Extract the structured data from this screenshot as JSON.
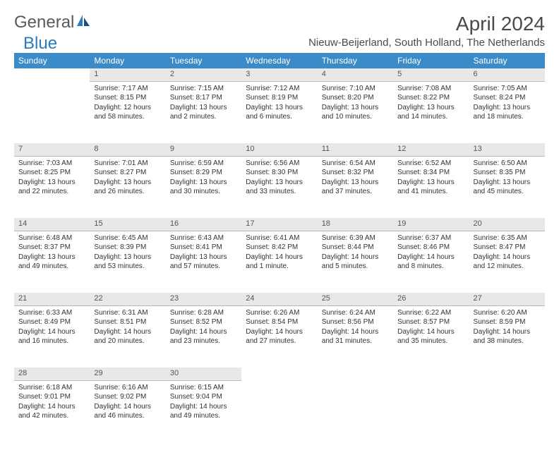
{
  "logo": {
    "text1": "General",
    "text2": "Blue"
  },
  "title": "April 2024",
  "location": "Nieuw-Beijerland, South Holland, The Netherlands",
  "colors": {
    "header_bg": "#3b8bc8",
    "header_fg": "#ffffff",
    "daynum_bg": "#e8e8e8",
    "separator": "#3b6a8f",
    "logo_gray": "#5a5a5a",
    "logo_blue": "#2a7abf"
  },
  "weekdays": [
    "Sunday",
    "Monday",
    "Tuesday",
    "Wednesday",
    "Thursday",
    "Friday",
    "Saturday"
  ],
  "weeks": [
    [
      null,
      {
        "n": "1",
        "sr": "Sunrise: 7:17 AM",
        "ss": "Sunset: 8:15 PM",
        "d1": "Daylight: 12 hours",
        "d2": "and 58 minutes."
      },
      {
        "n": "2",
        "sr": "Sunrise: 7:15 AM",
        "ss": "Sunset: 8:17 PM",
        "d1": "Daylight: 13 hours",
        "d2": "and 2 minutes."
      },
      {
        "n": "3",
        "sr": "Sunrise: 7:12 AM",
        "ss": "Sunset: 8:19 PM",
        "d1": "Daylight: 13 hours",
        "d2": "and 6 minutes."
      },
      {
        "n": "4",
        "sr": "Sunrise: 7:10 AM",
        "ss": "Sunset: 8:20 PM",
        "d1": "Daylight: 13 hours",
        "d2": "and 10 minutes."
      },
      {
        "n": "5",
        "sr": "Sunrise: 7:08 AM",
        "ss": "Sunset: 8:22 PM",
        "d1": "Daylight: 13 hours",
        "d2": "and 14 minutes."
      },
      {
        "n": "6",
        "sr": "Sunrise: 7:05 AM",
        "ss": "Sunset: 8:24 PM",
        "d1": "Daylight: 13 hours",
        "d2": "and 18 minutes."
      }
    ],
    [
      {
        "n": "7",
        "sr": "Sunrise: 7:03 AM",
        "ss": "Sunset: 8:25 PM",
        "d1": "Daylight: 13 hours",
        "d2": "and 22 minutes."
      },
      {
        "n": "8",
        "sr": "Sunrise: 7:01 AM",
        "ss": "Sunset: 8:27 PM",
        "d1": "Daylight: 13 hours",
        "d2": "and 26 minutes."
      },
      {
        "n": "9",
        "sr": "Sunrise: 6:59 AM",
        "ss": "Sunset: 8:29 PM",
        "d1": "Daylight: 13 hours",
        "d2": "and 30 minutes."
      },
      {
        "n": "10",
        "sr": "Sunrise: 6:56 AM",
        "ss": "Sunset: 8:30 PM",
        "d1": "Daylight: 13 hours",
        "d2": "and 33 minutes."
      },
      {
        "n": "11",
        "sr": "Sunrise: 6:54 AM",
        "ss": "Sunset: 8:32 PM",
        "d1": "Daylight: 13 hours",
        "d2": "and 37 minutes."
      },
      {
        "n": "12",
        "sr": "Sunrise: 6:52 AM",
        "ss": "Sunset: 8:34 PM",
        "d1": "Daylight: 13 hours",
        "d2": "and 41 minutes."
      },
      {
        "n": "13",
        "sr": "Sunrise: 6:50 AM",
        "ss": "Sunset: 8:35 PM",
        "d1": "Daylight: 13 hours",
        "d2": "and 45 minutes."
      }
    ],
    [
      {
        "n": "14",
        "sr": "Sunrise: 6:48 AM",
        "ss": "Sunset: 8:37 PM",
        "d1": "Daylight: 13 hours",
        "d2": "and 49 minutes."
      },
      {
        "n": "15",
        "sr": "Sunrise: 6:45 AM",
        "ss": "Sunset: 8:39 PM",
        "d1": "Daylight: 13 hours",
        "d2": "and 53 minutes."
      },
      {
        "n": "16",
        "sr": "Sunrise: 6:43 AM",
        "ss": "Sunset: 8:41 PM",
        "d1": "Daylight: 13 hours",
        "d2": "and 57 minutes."
      },
      {
        "n": "17",
        "sr": "Sunrise: 6:41 AM",
        "ss": "Sunset: 8:42 PM",
        "d1": "Daylight: 14 hours",
        "d2": "and 1 minute."
      },
      {
        "n": "18",
        "sr": "Sunrise: 6:39 AM",
        "ss": "Sunset: 8:44 PM",
        "d1": "Daylight: 14 hours",
        "d2": "and 5 minutes."
      },
      {
        "n": "19",
        "sr": "Sunrise: 6:37 AM",
        "ss": "Sunset: 8:46 PM",
        "d1": "Daylight: 14 hours",
        "d2": "and 8 minutes."
      },
      {
        "n": "20",
        "sr": "Sunrise: 6:35 AM",
        "ss": "Sunset: 8:47 PM",
        "d1": "Daylight: 14 hours",
        "d2": "and 12 minutes."
      }
    ],
    [
      {
        "n": "21",
        "sr": "Sunrise: 6:33 AM",
        "ss": "Sunset: 8:49 PM",
        "d1": "Daylight: 14 hours",
        "d2": "and 16 minutes."
      },
      {
        "n": "22",
        "sr": "Sunrise: 6:31 AM",
        "ss": "Sunset: 8:51 PM",
        "d1": "Daylight: 14 hours",
        "d2": "and 20 minutes."
      },
      {
        "n": "23",
        "sr": "Sunrise: 6:28 AM",
        "ss": "Sunset: 8:52 PM",
        "d1": "Daylight: 14 hours",
        "d2": "and 23 minutes."
      },
      {
        "n": "24",
        "sr": "Sunrise: 6:26 AM",
        "ss": "Sunset: 8:54 PM",
        "d1": "Daylight: 14 hours",
        "d2": "and 27 minutes."
      },
      {
        "n": "25",
        "sr": "Sunrise: 6:24 AM",
        "ss": "Sunset: 8:56 PM",
        "d1": "Daylight: 14 hours",
        "d2": "and 31 minutes."
      },
      {
        "n": "26",
        "sr": "Sunrise: 6:22 AM",
        "ss": "Sunset: 8:57 PM",
        "d1": "Daylight: 14 hours",
        "d2": "and 35 minutes."
      },
      {
        "n": "27",
        "sr": "Sunrise: 6:20 AM",
        "ss": "Sunset: 8:59 PM",
        "d1": "Daylight: 14 hours",
        "d2": "and 38 minutes."
      }
    ],
    [
      {
        "n": "28",
        "sr": "Sunrise: 6:18 AM",
        "ss": "Sunset: 9:01 PM",
        "d1": "Daylight: 14 hours",
        "d2": "and 42 minutes."
      },
      {
        "n": "29",
        "sr": "Sunrise: 6:16 AM",
        "ss": "Sunset: 9:02 PM",
        "d1": "Daylight: 14 hours",
        "d2": "and 46 minutes."
      },
      {
        "n": "30",
        "sr": "Sunrise: 6:15 AM",
        "ss": "Sunset: 9:04 PM",
        "d1": "Daylight: 14 hours",
        "d2": "and 49 minutes."
      },
      null,
      null,
      null,
      null
    ]
  ]
}
